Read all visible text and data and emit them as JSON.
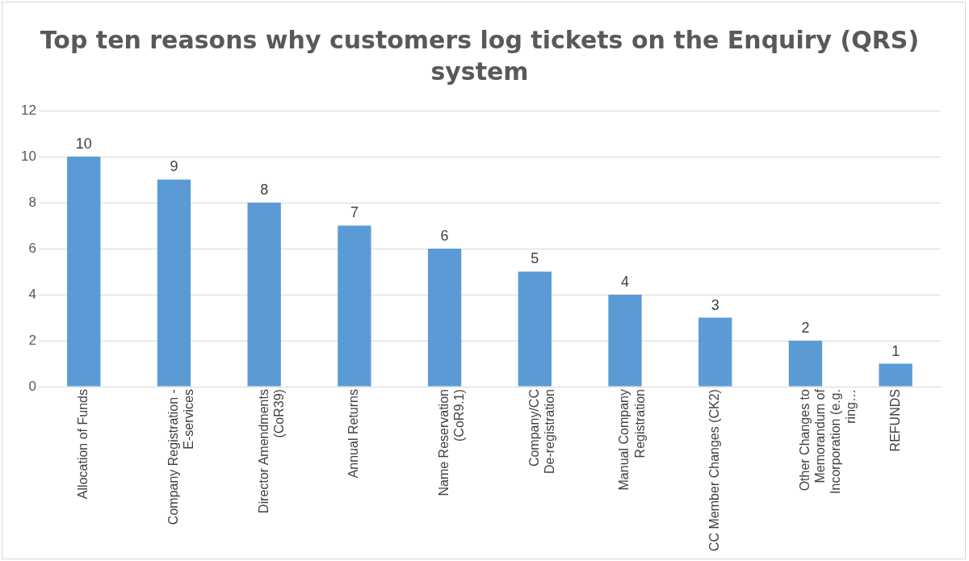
{
  "chart_data": {
    "type": "bar",
    "title": "Top ten reasons why customers log tickets on the Enquiry (QRS) system",
    "categories": [
      "Allocation of Funds",
      "Company Registration - E-services",
      "Director Amendments (CoR39)",
      "Annual Returns",
      "Name Reservation (CoR9.1)",
      "Company/CC De-registration",
      "Manual Company Registration",
      "CC Member Changes (CK2)",
      "Other Changes to Memorandum of Incorporation (e.g. ring…",
      "REFUNDS"
    ],
    "values": [
      10,
      9,
      8,
      7,
      6,
      5,
      4,
      3,
      2,
      1
    ],
    "color": "#5b9bd5",
    "ylim": [
      0,
      12
    ],
    "yticks": [
      0,
      2,
      4,
      6,
      8,
      10,
      12
    ],
    "grid": "y",
    "data_labels": true
  }
}
